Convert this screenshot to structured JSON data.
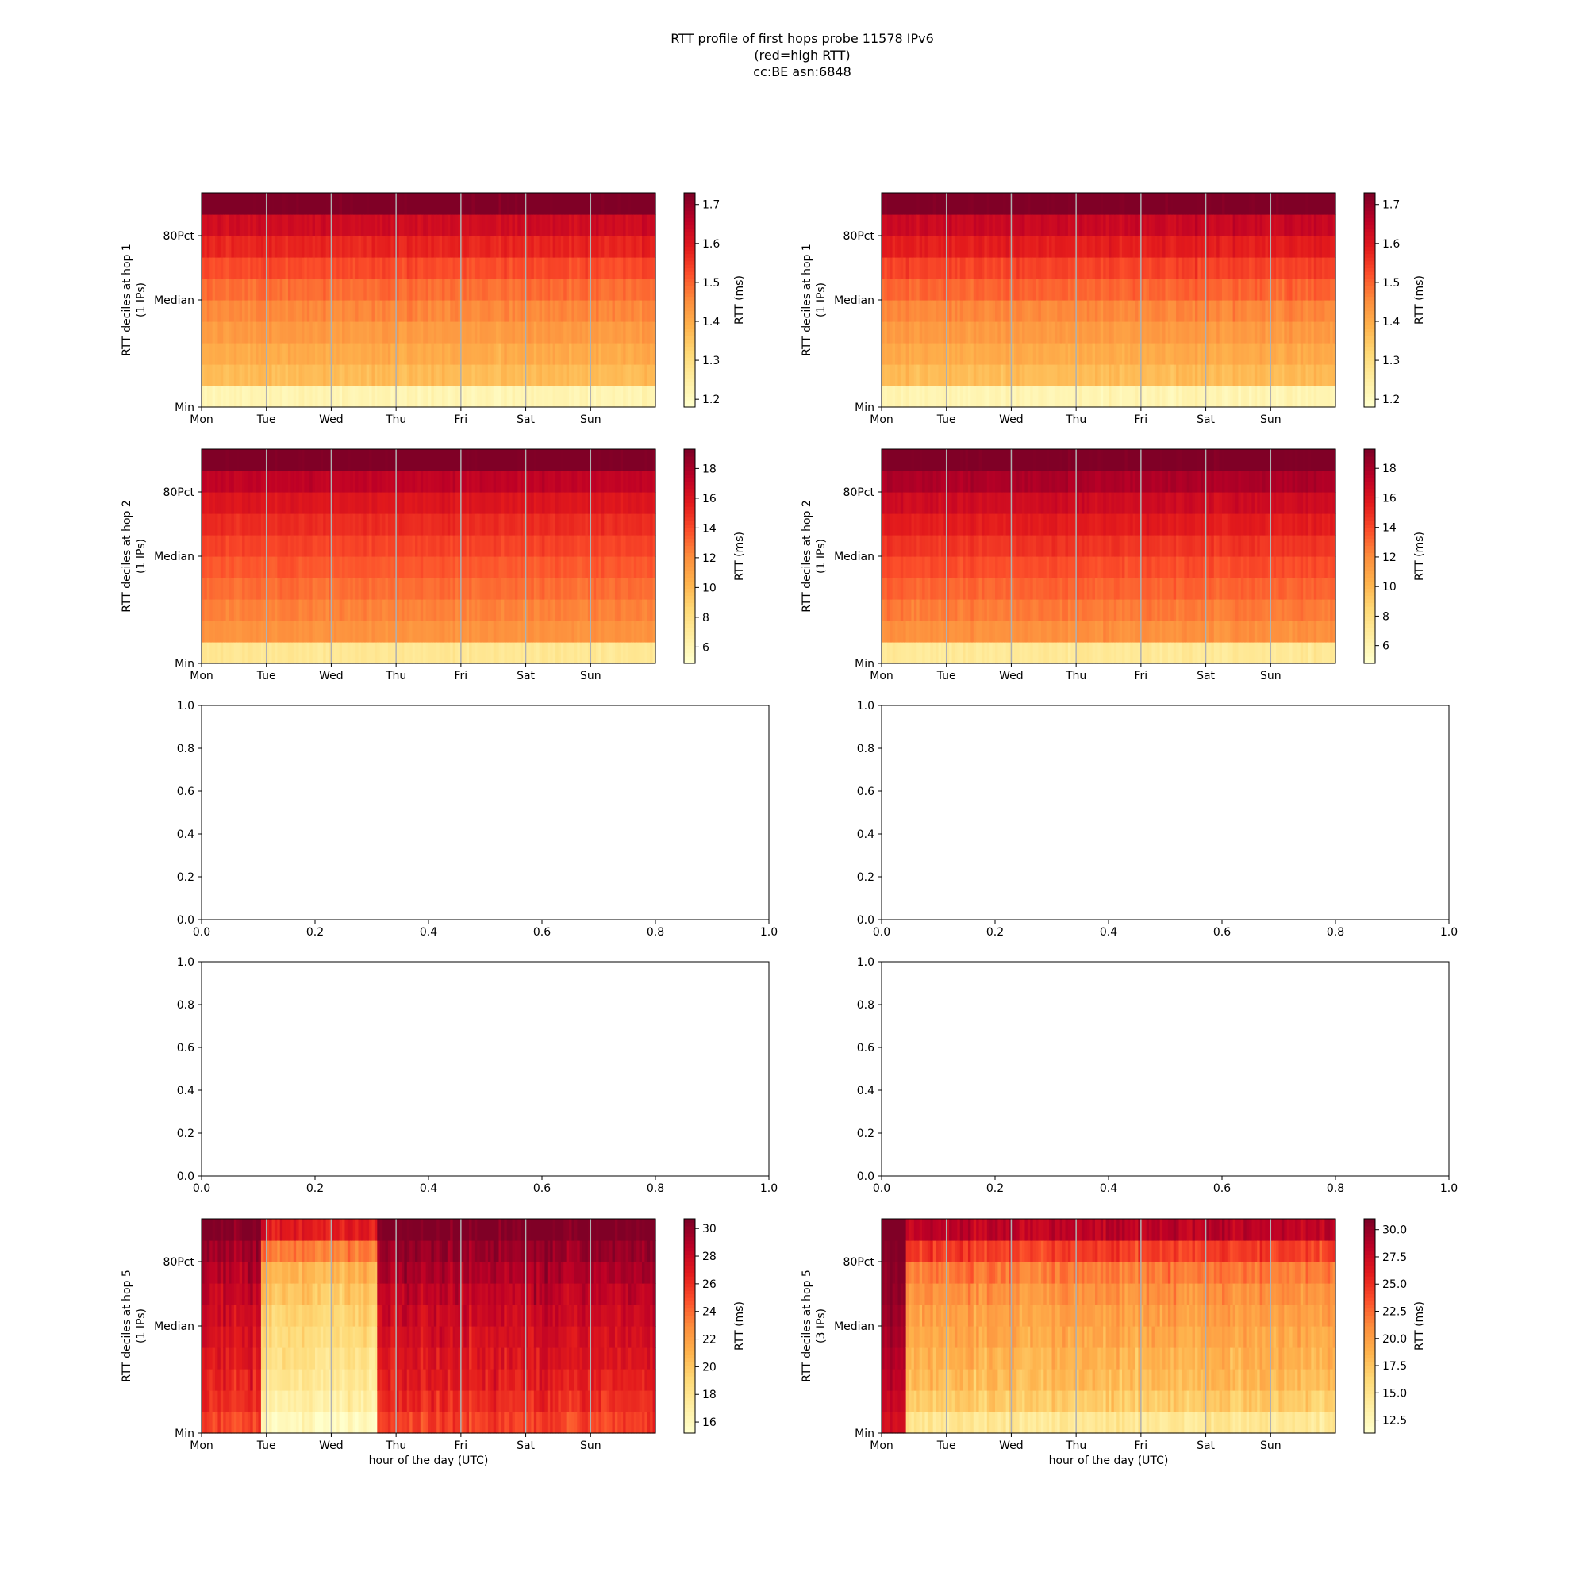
{
  "figure": {
    "title_lines": [
      "RTT profile of first hops probe 11578 IPv6",
      "(red=high RTT)",
      "cc:BE asn:6848"
    ]
  },
  "colors": {
    "colormap": "YlOrRd",
    "ramp": [
      "#ffffcc",
      "#ffeda0",
      "#fed976",
      "#feb24c",
      "#fd8d3c",
      "#fc4e2a",
      "#e31a1c",
      "#bd0026",
      "#800026"
    ],
    "gridline": "#b0b0b0",
    "frame": "#000000"
  },
  "chart_data": [
    {
      "type": "heatmap",
      "panel": "row1-left",
      "ylabel": [
        "RTT deciles at hop 1",
        "(1 IPs)"
      ],
      "xlabel": "",
      "x_ticks": [
        "Mon",
        "Tue",
        "Wed",
        "Thu",
        "Fri",
        "Sat",
        "Sun"
      ],
      "y_ticks": [
        "Min",
        "Median",
        "80Pct"
      ],
      "colorbar": {
        "label": "RTT (ms)",
        "ticks": [
          "1.2",
          "1.3",
          "1.4",
          "1.5",
          "1.6",
          "1.7"
        ],
        "range": [
          1.18,
          1.73
        ]
      },
      "decile_rtt_ms": [
        1.22,
        1.37,
        1.4,
        1.43,
        1.46,
        1.49,
        1.53,
        1.58,
        1.63,
        1.74
      ],
      "noise": 0.03,
      "regimes": []
    },
    {
      "type": "heatmap",
      "panel": "row1-right",
      "ylabel": [
        "RTT deciles at hop 1",
        "(1 IPs)"
      ],
      "xlabel": "",
      "x_ticks": [
        "Mon",
        "Tue",
        "Wed",
        "Thu",
        "Fri",
        "Sat",
        "Sun"
      ],
      "y_ticks": [
        "Min",
        "Median",
        "80Pct"
      ],
      "colorbar": {
        "label": "RTT (ms)",
        "ticks": [
          "1.2",
          "1.3",
          "1.4",
          "1.5",
          "1.6",
          "1.7"
        ],
        "range": [
          1.18,
          1.73
        ]
      },
      "decile_rtt_ms": [
        1.22,
        1.37,
        1.4,
        1.43,
        1.46,
        1.5,
        1.54,
        1.59,
        1.64,
        1.74
      ],
      "noise": 0.03,
      "regimes": []
    },
    {
      "type": "heatmap",
      "panel": "row2-left",
      "ylabel": [
        "RTT deciles at hop 2",
        "(1 IPs)"
      ],
      "xlabel": "",
      "x_ticks": [
        "Mon",
        "Tue",
        "Wed",
        "Thu",
        "Fri",
        "Sat",
        "Sun"
      ],
      "y_ticks": [
        "Min",
        "Median",
        "80Pct"
      ],
      "colorbar": {
        "label": "RTT (ms)",
        "ticks": [
          "6",
          "8",
          "10",
          "12",
          "14",
          "16",
          "18"
        ],
        "range": [
          4.9,
          19.3
        ]
      },
      "decile_rtt_ms": [
        7.2,
        11.8,
        12.4,
        13.0,
        13.6,
        14.3,
        15.1,
        16.0,
        17.3,
        19.5
      ],
      "noise": 0.6,
      "regimes": []
    },
    {
      "type": "heatmap",
      "panel": "row2-right",
      "ylabel": [
        "RTT deciles at hop 2",
        "(1 IPs)"
      ],
      "xlabel": "",
      "x_ticks": [
        "Mon",
        "Tue",
        "Wed",
        "Thu",
        "Fri",
        "Sat",
        "Sun"
      ],
      "y_ticks": [
        "Min",
        "Median",
        "80Pct"
      ],
      "colorbar": {
        "label": "RTT (ms)",
        "ticks": [
          "6",
          "8",
          "10",
          "12",
          "14",
          "16",
          "18"
        ],
        "range": [
          4.8,
          19.3
        ]
      },
      "decile_rtt_ms": [
        7.0,
        11.9,
        12.6,
        13.3,
        14.0,
        14.8,
        15.7,
        16.7,
        18.0,
        19.5
      ],
      "noise": 0.7,
      "regimes": []
    },
    {
      "type": "empty",
      "panel": "row3-left",
      "x_ticks": [
        "0.0",
        "0.2",
        "0.4",
        "0.6",
        "0.8",
        "1.0"
      ],
      "y_ticks": [
        "0.0",
        "0.2",
        "0.4",
        "0.6",
        "0.8",
        "1.0"
      ],
      "xlim": [
        0,
        1
      ],
      "ylim": [
        0,
        1
      ]
    },
    {
      "type": "empty",
      "panel": "row3-right",
      "x_ticks": [
        "0.0",
        "0.2",
        "0.4",
        "0.6",
        "0.8",
        "1.0"
      ],
      "y_ticks": [
        "0.0",
        "0.2",
        "0.4",
        "0.6",
        "0.8",
        "1.0"
      ],
      "xlim": [
        0,
        1
      ],
      "ylim": [
        0,
        1
      ]
    },
    {
      "type": "empty",
      "panel": "row4-left",
      "x_ticks": [
        "0.0",
        "0.2",
        "0.4",
        "0.6",
        "0.8",
        "1.0"
      ],
      "y_ticks": [
        "0.0",
        "0.2",
        "0.4",
        "0.6",
        "0.8",
        "1.0"
      ],
      "xlim": [
        0,
        1
      ],
      "ylim": [
        0,
        1
      ]
    },
    {
      "type": "empty",
      "panel": "row4-right",
      "x_ticks": [
        "0.0",
        "0.2",
        "0.4",
        "0.6",
        "0.8",
        "1.0"
      ],
      "y_ticks": [
        "0.0",
        "0.2",
        "0.4",
        "0.6",
        "0.8",
        "1.0"
      ],
      "xlim": [
        0,
        1
      ],
      "ylim": [
        0,
        1
      ]
    },
    {
      "type": "heatmap",
      "panel": "row5-left",
      "ylabel": [
        "RTT deciles at hop 5",
        "(1 IPs)"
      ],
      "xlabel": "hour of the day (UTC)",
      "x_ticks": [
        "Mon",
        "Tue",
        "Wed",
        "Thu",
        "Fri",
        "Sat",
        "Sun"
      ],
      "y_ticks": [
        "Min",
        "Median",
        "80Pct"
      ],
      "colorbar": {
        "label": "RTT (ms)",
        "ticks": [
          "16",
          "18",
          "20",
          "22",
          "24",
          "26",
          "28",
          "30"
        ],
        "range": [
          15.2,
          30.7
        ]
      },
      "decile_rtt_ms": [
        25.5,
        26.2,
        26.8,
        27.2,
        27.6,
        28.0,
        28.5,
        29.2,
        30.0,
        31.0
      ],
      "noise": 1.8,
      "regimes": [
        {
          "from_day": 0.9,
          "to_day": 2.7,
          "decile_rtt_ms": [
            15.8,
            17.0,
            17.8,
            18.3,
            18.8,
            19.3,
            20.0,
            21.0,
            23.5,
            27.0
          ],
          "noise": 1.6
        }
      ]
    },
    {
      "type": "heatmap",
      "panel": "row5-right",
      "ylabel": [
        "RTT deciles at hop 5",
        "(3 IPs)"
      ],
      "xlabel": "hour of the day (UTC)",
      "x_ticks": [
        "Mon",
        "Tue",
        "Wed",
        "Thu",
        "Fri",
        "Sat",
        "Sun"
      ],
      "y_ticks": [
        "Min",
        "Median",
        "80Pct"
      ],
      "colorbar": {
        "label": "RTT (ms)",
        "ticks": [
          "12.5",
          "15.0",
          "17.5",
          "20.0",
          "22.5",
          "25.0",
          "27.5",
          "30.0"
        ],
        "range": [
          11.3,
          31.0
        ]
      },
      "decile_rtt_ms": [
        14.5,
        17.2,
        18.2,
        18.8,
        19.4,
        20.0,
        20.8,
        22.0,
        24.5,
        28.5
      ],
      "noise": 2.2,
      "regimes": [
        {
          "from_day": 0.0,
          "to_day": 0.35,
          "decile_rtt_ms": [
            27.0,
            28.0,
            28.6,
            29.0,
            29.4,
            29.8,
            30.2,
            30.6,
            31.0,
            31.5
          ],
          "noise": 1.2
        }
      ]
    }
  ]
}
